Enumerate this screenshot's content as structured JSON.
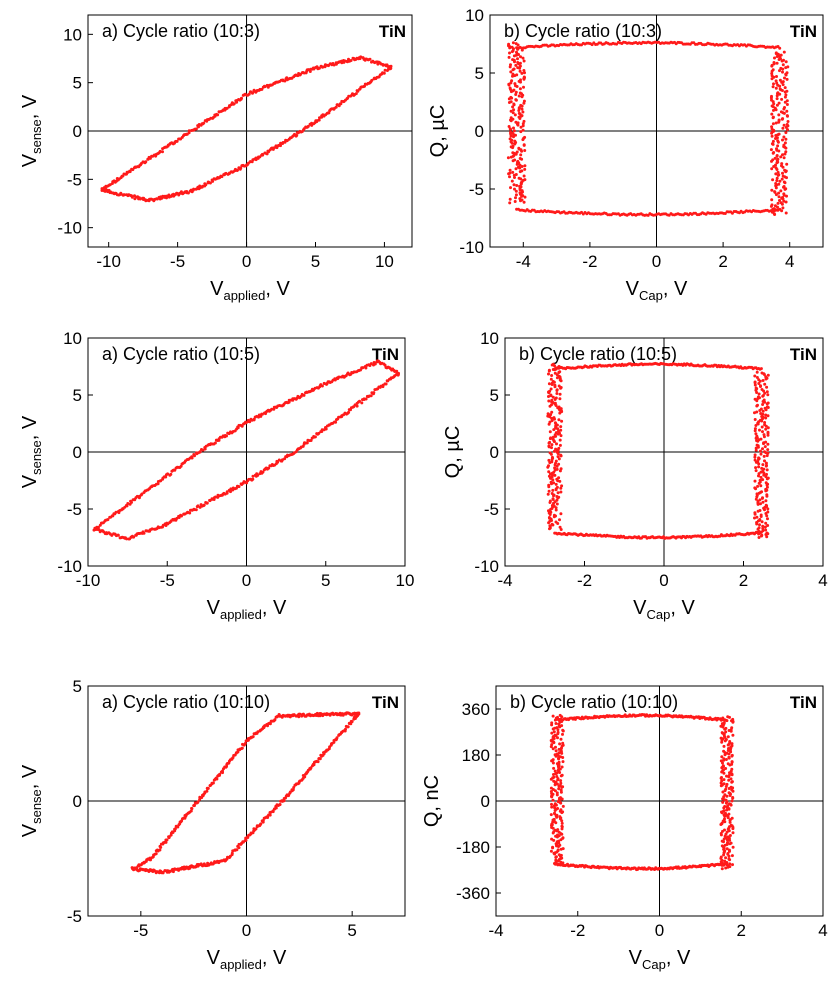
{
  "chart_data": [
    {
      "type": "scatter",
      "panel": "a",
      "title": "a) Cycle ratio (10:3)",
      "corner_label": "TiN",
      "xlabel": {
        "main": "V",
        "sub": "applied",
        "unit": ", V"
      },
      "ylabel": {
        "main": "V",
        "sub": "sense",
        "unit": ", V"
      },
      "xlim": [
        -11.5,
        12
      ],
      "ylim": [
        -12,
        12
      ],
      "xticks": [
        -10,
        -5,
        0,
        5,
        10
      ],
      "yticks": [
        -10,
        -5,
        0,
        5,
        10
      ],
      "tick_labels_x": [
        "-10",
        "-5",
        "0",
        "5",
        "10"
      ],
      "tick_labels_y": [
        "-10",
        "-5",
        "0",
        "5",
        "10"
      ],
      "color": "#ff1a1a",
      "grid": false,
      "loop": {
        "kind": "pe",
        "upper": [
          [
            -10.5,
            -6.1
          ],
          [
            -4,
            0
          ],
          [
            0,
            3.8
          ],
          [
            5,
            6.5
          ],
          [
            8.3,
            7.6
          ],
          [
            10.5,
            6.6
          ]
        ],
        "lower": [
          [
            -10.5,
            -6.1
          ],
          [
            -7,
            -7.2
          ],
          [
            -4,
            -6.2
          ],
          [
            0,
            -3.5
          ],
          [
            4,
            0
          ],
          [
            10.5,
            6.6
          ]
        ]
      }
    },
    {
      "type": "scatter",
      "panel": "b",
      "title": "b) Cycle ratio (10:3)",
      "corner_label": "TiN",
      "xlabel": {
        "main": "V",
        "sub": "Cap",
        "unit": ", V"
      },
      "ylabel": {
        "main": "Q, µC",
        "sub": "",
        "unit": ""
      },
      "xlim": [
        -5,
        5
      ],
      "ylim": [
        -10,
        10
      ],
      "xticks": [
        -4,
        -2,
        0,
        2,
        4
      ],
      "yticks": [
        -10,
        -5,
        0,
        5,
        10
      ],
      "tick_labels_x": [
        "-4",
        "-2",
        "0",
        "2",
        "4"
      ],
      "tick_labels_y": [
        "-10",
        "-5",
        "0",
        "5",
        "10"
      ],
      "color": "#ff1a1a",
      "grid": false,
      "loop": {
        "kind": "box",
        "x_left": -4.2,
        "x_right": 3.7,
        "band": 0.5,
        "y_top": 7.6,
        "y_bottom": -7.2,
        "y_left_min": -6.2,
        "y_right_max": 6.8
      }
    },
    {
      "type": "scatter",
      "panel": "a",
      "title": "a) Cycle ratio (10:5)",
      "corner_label": "TiN",
      "xlabel": {
        "main": "V",
        "sub": "applied",
        "unit": ", V"
      },
      "ylabel": {
        "main": "V",
        "sub": "sense",
        "unit": ", V"
      },
      "xlim": [
        -10,
        10
      ],
      "ylim": [
        -10,
        10
      ],
      "xticks": [
        -10,
        -5,
        0,
        5,
        10
      ],
      "yticks": [
        -10,
        -5,
        0,
        5,
        10
      ],
      "tick_labels_x": [
        "-10",
        "-5",
        "0",
        "5",
        "10"
      ],
      "tick_labels_y": [
        "-10",
        "-5",
        "0",
        "5",
        "10"
      ],
      "color": "#ff1a1a",
      "grid": false,
      "loop": {
        "kind": "pe",
        "upper": [
          [
            -9.6,
            -6.8
          ],
          [
            -3,
            0
          ],
          [
            0,
            2.6
          ],
          [
            5,
            6
          ],
          [
            8.3,
            7.9
          ],
          [
            9.6,
            6.9
          ]
        ],
        "lower": [
          [
            -9.6,
            -6.8
          ],
          [
            -7.5,
            -7.6
          ],
          [
            -5,
            -6.3
          ],
          [
            0,
            -2.6
          ],
          [
            3,
            0
          ],
          [
            9.6,
            6.9
          ]
        ]
      }
    },
    {
      "type": "scatter",
      "panel": "b",
      "title": "b) Cycle ratio (10:5)",
      "corner_label": "TiN",
      "xlabel": {
        "main": "V",
        "sub": "Cap",
        "unit": ", V"
      },
      "ylabel": {
        "main": "Q, µC",
        "sub": "",
        "unit": ""
      },
      "xlim": [
        -4,
        4
      ],
      "ylim": [
        -10,
        10
      ],
      "xticks": [
        -4,
        -2,
        0,
        2,
        4
      ],
      "yticks": [
        -10,
        -5,
        0,
        5,
        10
      ],
      "tick_labels_x": [
        "-4",
        "-2",
        "0",
        "2",
        "4"
      ],
      "tick_labels_y": [
        "-10",
        "-5",
        "0",
        "5",
        "10"
      ],
      "color": "#ff1a1a",
      "grid": false,
      "loop": {
        "kind": "box",
        "x_left": -2.75,
        "x_right": 2.45,
        "band": 0.35,
        "y_top": 7.7,
        "y_bottom": -7.5,
        "y_left_min": -6.8,
        "y_right_max": 7.0
      }
    },
    {
      "type": "scatter",
      "panel": "a",
      "title": "a) Cycle ratio (10:10)",
      "corner_label": "TiN",
      "xlabel": {
        "main": "V",
        "sub": "applied",
        "unit": ", V"
      },
      "ylabel": {
        "main": "V",
        "sub": "sense",
        "unit": ", V"
      },
      "xlim": [
        -7.5,
        7.5
      ],
      "ylim": [
        -5,
        5
      ],
      "xticks": [
        -5,
        0,
        5
      ],
      "yticks": [
        -5,
        0,
        5
      ],
      "tick_labels_x": [
        "-5",
        "0",
        "5"
      ],
      "tick_labels_y": [
        "-5",
        "0",
        "5"
      ],
      "color": "#ff1a1a",
      "grid": false,
      "loop": {
        "kind": "pe",
        "upper": [
          [
            -5.4,
            -2.95
          ],
          [
            -4.5,
            -2.5
          ],
          [
            -2.3,
            0
          ],
          [
            0,
            2.6
          ],
          [
            1.5,
            3.7
          ],
          [
            5.3,
            3.8
          ]
        ],
        "lower": [
          [
            -5.4,
            -2.95
          ],
          [
            -4,
            -3.1
          ],
          [
            -1,
            -2.6
          ],
          [
            0,
            -1.6
          ],
          [
            1.7,
            0
          ],
          [
            5.3,
            3.8
          ]
        ]
      }
    },
    {
      "type": "scatter",
      "panel": "b",
      "title": "b) Cycle ratio (10:10)",
      "corner_label": "TiN",
      "xlabel": {
        "main": "V",
        "sub": "Cap",
        "unit": ", V"
      },
      "ylabel": {
        "main": "Q, nC",
        "sub": "",
        "unit": ""
      },
      "xlim": [
        -4,
        4
      ],
      "ylim": [
        -450,
        450
      ],
      "xticks": [
        -4,
        -2,
        0,
        2,
        4
      ],
      "yticks": [
        -360,
        -180,
        0,
        180,
        360
      ],
      "tick_labels_x": [
        "-4",
        "-2",
        "0",
        "2",
        "4"
      ],
      "tick_labels_y": [
        "-360",
        "-180",
        "0",
        "180",
        "360"
      ],
      "color": "#ff1a1a",
      "grid": false,
      "loop": {
        "kind": "box",
        "x_left": -2.5,
        "x_right": 1.65,
        "band": 0.3,
        "y_top": 335,
        "y_bottom": -265,
        "y_left_min": -250,
        "y_right_max": 330
      }
    }
  ]
}
